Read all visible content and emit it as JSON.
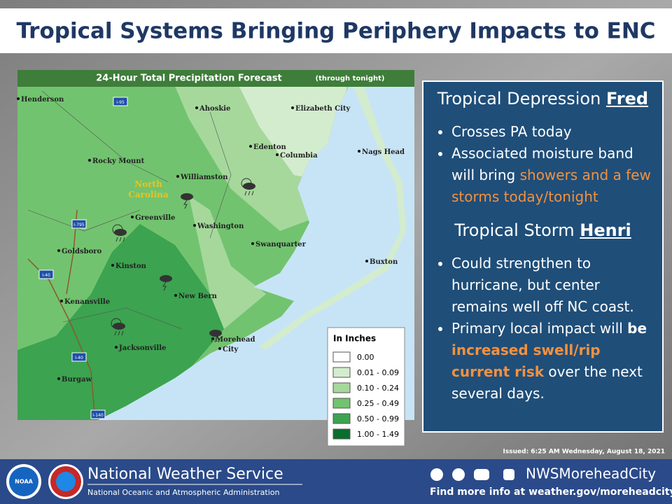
{
  "title": "Tropical Systems Bringing Periphery Impacts to ENC",
  "map": {
    "title": "24-Hour Total Precipitation Forecast",
    "subtitle": "(through tonight)",
    "places": [
      "Henderson",
      "Ahoskie",
      "Elizabeth City",
      "Edenton",
      "Columbia",
      "Nags Head",
      "Rocky Mount",
      "Williamston",
      "Greenville",
      "Washington",
      "Swanquarter",
      "Goldsboro",
      "Kinston",
      "Buxton",
      "New Bern",
      "Kenansville",
      "Jacksonville",
      "Morehead",
      "City",
      "Burgaw"
    ],
    "region_label": [
      "North",
      "Carolina"
    ],
    "highways": [
      "I-95",
      "I-795",
      "I-40",
      "I-40",
      "I-140"
    ],
    "legend": {
      "title": "In Inches",
      "items": [
        {
          "label": "0.00",
          "color": "#ffffff"
        },
        {
          "label": "0.01 - 0.09",
          "color": "#d3ecce"
        },
        {
          "label": "0.10 - 0.24",
          "color": "#a6d89c"
        },
        {
          "label": "0.25 - 0.49",
          "color": "#72c36f"
        },
        {
          "label": "0.50 - 0.99",
          "color": "#3ca350"
        },
        {
          "label": "1.00 - 1.49",
          "color": "#0a6e2c"
        }
      ]
    }
  },
  "panel": {
    "sections": [
      {
        "heading": [
          {
            "text": "Tropical Depression ",
            "style": "plain"
          },
          {
            "text": "Fred",
            "style": "bold-underline"
          }
        ],
        "bullets": [
          {
            "segments": [
              {
                "text": "Crosses PA today",
                "style": "plain"
              }
            ]
          },
          {
            "segments": [
              {
                "text": "Associated moisture band will bring ",
                "style": "plain"
              },
              {
                "text": "showers and a few storms today/tonight",
                "style": "orange"
              }
            ]
          }
        ]
      },
      {
        "heading": [
          {
            "text": "Tropical Storm ",
            "style": "plain"
          },
          {
            "text": "Henri",
            "style": "bold-underline"
          }
        ],
        "bullets": [
          {
            "segments": [
              {
                "text": "Could strengthen to hurricane, but center remains well off NC coast.",
                "style": "plain"
              }
            ]
          },
          {
            "segments": [
              {
                "text": "Primary local impact will ",
                "style": "plain"
              },
              {
                "text": "be ",
                "style": "bold"
              },
              {
                "text": "increased swell/rip current risk",
                "style": "bold-orange"
              },
              {
                "text": " over the next several days.",
                "style": "plain"
              }
            ]
          }
        ]
      }
    ]
  },
  "issued": "Issued: 6:25 AM Wednesday, August 18, 2021",
  "footer": {
    "agency": "National Weather Service",
    "parent": "National Oceanic and Atmospheric Administration",
    "handle": "NWSMoreheadCity",
    "link": "Find more info at weather.gov/moreheadcity",
    "logo": "NOAA"
  }
}
